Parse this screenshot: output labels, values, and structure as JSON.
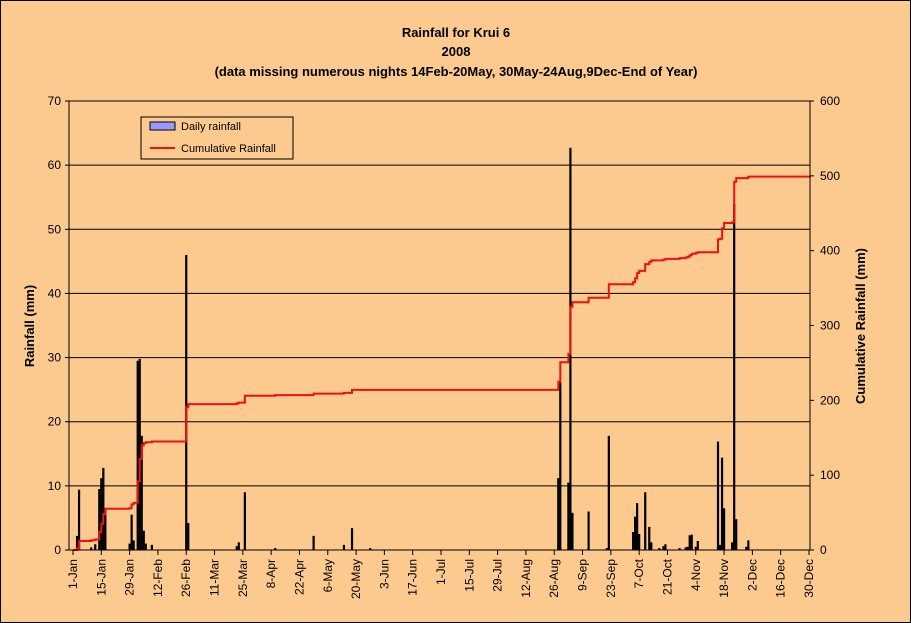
{
  "chart_data": {
    "type": "bar+line",
    "title_lines": [
      "Rainfall for Krui 6",
      "2008",
      "(data missing numerous nights 14Feb-20May, 30May-24Aug,9Dec-End of Year)"
    ],
    "ylabel": "Rainfall (mm)",
    "y2label": "Cumulative Rainfall (mm)",
    "ylim": [
      0,
      70
    ],
    "y2lim": [
      0,
      600
    ],
    "yticks": [
      0,
      10,
      20,
      30,
      40,
      50,
      60,
      70
    ],
    "y2ticks": [
      0,
      100,
      200,
      300,
      400,
      500,
      600
    ],
    "xticks": [
      {
        "day": 1,
        "label": "1-Jan"
      },
      {
        "day": 15,
        "label": "15-Jan"
      },
      {
        "day": 29,
        "label": "29-Jan"
      },
      {
        "day": 43,
        "label": "12-Feb"
      },
      {
        "day": 57,
        "label": "26-Feb"
      },
      {
        "day": 71,
        "label": "11-Mar"
      },
      {
        "day": 85,
        "label": "25-Mar"
      },
      {
        "day": 99,
        "label": "8-Apr"
      },
      {
        "day": 113,
        "label": "22-Apr"
      },
      {
        "day": 127,
        "label": "6-May"
      },
      {
        "day": 141,
        "label": "20-May"
      },
      {
        "day": 155,
        "label": "3-Jun"
      },
      {
        "day": 169,
        "label": "17-Jun"
      },
      {
        "day": 183,
        "label": "1-Jul"
      },
      {
        "day": 197,
        "label": "15-Jul"
      },
      {
        "day": 211,
        "label": "29-Jul"
      },
      {
        "day": 225,
        "label": "12-Aug"
      },
      {
        "day": 239,
        "label": "26-Aug"
      },
      {
        "day": 253,
        "label": "9-Sep"
      },
      {
        "day": 267,
        "label": "23-Sep"
      },
      {
        "day": 281,
        "label": "7-Oct"
      },
      {
        "day": 295,
        "label": "21-Oct"
      },
      {
        "day": 309,
        "label": "4-Nov"
      },
      {
        "day": 323,
        "label": "18-Nov"
      },
      {
        "day": 337,
        "label": "2-Dec"
      },
      {
        "day": 351,
        "label": "16-Dec"
      },
      {
        "day": 365,
        "label": "30-Dec"
      }
    ],
    "legend": {
      "placement": "top-left",
      "entries": [
        "Daily rainfall",
        "Cumulative Rainfall"
      ]
    },
    "grid": "horizontal",
    "series": [
      {
        "name": "Daily rainfall",
        "kind": "bar",
        "color": "#000000",
        "points": [
          [
            3,
            2.2
          ],
          [
            4,
            9.4
          ],
          [
            10,
            0.4
          ],
          [
            12,
            0.9
          ],
          [
            14,
            9.5
          ],
          [
            15,
            11.2
          ],
          [
            16,
            12.8
          ],
          [
            17,
            6.5
          ],
          [
            29,
            1
          ],
          [
            30,
            5.5
          ],
          [
            31,
            1.5
          ],
          [
            33,
            29.5
          ],
          [
            34,
            29.8
          ],
          [
            35,
            17.8
          ],
          [
            36,
            3
          ],
          [
            37,
            1
          ],
          [
            40,
            0.8
          ],
          [
            57,
            46
          ],
          [
            58,
            4.2
          ],
          [
            82,
            0.6
          ],
          [
            83,
            1.2
          ],
          [
            86,
            9
          ],
          [
            101,
            0.3
          ],
          [
            120,
            2.2
          ],
          [
            135,
            0.8
          ],
          [
            139,
            3.4
          ],
          [
            148,
            0.3
          ],
          [
            241,
            11.2
          ],
          [
            242,
            26.1
          ],
          [
            246,
            10.5
          ],
          [
            247,
            62.7
          ],
          [
            248,
            5.8
          ],
          [
            256,
            6
          ],
          [
            265,
            0.3
          ],
          [
            266,
            17.8
          ],
          [
            278,
            2.8
          ],
          [
            279,
            5.2
          ],
          [
            280,
            7.3
          ],
          [
            281,
            2.5
          ],
          [
            284,
            9
          ],
          [
            286,
            3.6
          ],
          [
            287,
            1.2
          ],
          [
            291,
            0.3
          ],
          [
            293,
            0.6
          ],
          [
            294,
            0.9
          ],
          [
            301,
            0.3
          ],
          [
            304,
            0.4
          ],
          [
            305,
            0.5
          ],
          [
            306,
            2.3
          ],
          [
            307,
            2.4
          ],
          [
            309,
            0.5
          ],
          [
            310,
            1.4
          ],
          [
            320,
            16.9
          ],
          [
            321,
            0.8
          ],
          [
            322,
            14.4
          ],
          [
            323,
            6.5
          ],
          [
            327,
            1.2
          ],
          [
            328,
            54
          ],
          [
            329,
            4.8
          ],
          [
            334,
            0.5
          ],
          [
            335,
            1.5
          ]
        ]
      },
      {
        "name": "Cumulative Rainfall",
        "kind": "step-line",
        "color": "#ee1111",
        "points": [
          [
            1,
            0
          ],
          [
            3,
            2
          ],
          [
            4,
            12
          ],
          [
            10,
            13
          ],
          [
            12,
            14
          ],
          [
            14,
            24
          ],
          [
            15,
            35
          ],
          [
            16,
            48
          ],
          [
            17,
            55
          ],
          [
            29,
            56
          ],
          [
            30,
            61
          ],
          [
            31,
            63
          ],
          [
            33,
            92
          ],
          [
            34,
            122
          ],
          [
            35,
            140
          ],
          [
            36,
            143
          ],
          [
            37,
            144
          ],
          [
            40,
            145
          ],
          [
            57,
            191
          ],
          [
            58,
            195
          ],
          [
            82,
            196
          ],
          [
            83,
            197
          ],
          [
            86,
            206
          ],
          [
            101,
            207
          ],
          [
            120,
            209
          ],
          [
            135,
            210
          ],
          [
            139,
            214
          ],
          [
            148,
            214
          ],
          [
            240,
            214
          ],
          [
            241,
            225
          ],
          [
            242,
            251
          ],
          [
            246,
            262
          ],
          [
            247,
            325
          ],
          [
            248,
            331
          ],
          [
            256,
            337
          ],
          [
            265,
            337
          ],
          [
            266,
            355
          ],
          [
            278,
            358
          ],
          [
            279,
            363
          ],
          [
            280,
            370
          ],
          [
            281,
            373
          ],
          [
            284,
            382
          ],
          [
            286,
            385
          ],
          [
            287,
            387
          ],
          [
            291,
            387
          ],
          [
            293,
            388
          ],
          [
            294,
            389
          ],
          [
            301,
            390
          ],
          [
            304,
            391
          ],
          [
            305,
            392
          ],
          [
            306,
            394
          ],
          [
            307,
            396
          ],
          [
            309,
            397
          ],
          [
            310,
            398
          ],
          [
            320,
            415
          ],
          [
            321,
            416
          ],
          [
            322,
            430
          ],
          [
            323,
            437
          ],
          [
            327,
            438
          ],
          [
            328,
            492
          ],
          [
            329,
            497
          ],
          [
            334,
            497
          ],
          [
            335,
            499
          ],
          [
            366,
            499
          ]
        ]
      }
    ]
  }
}
